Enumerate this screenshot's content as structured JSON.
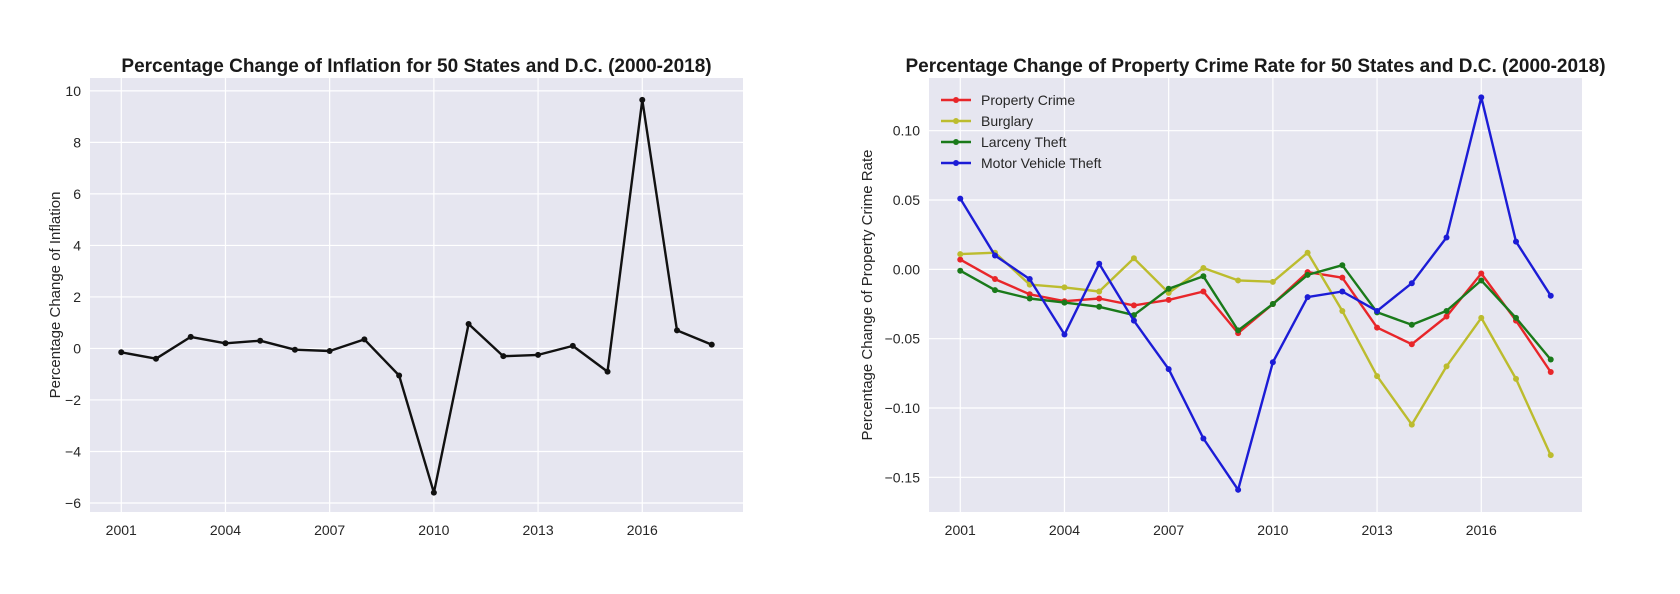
{
  "chart_data": [
    {
      "type": "line",
      "title": "Percentage Change of Inflation for 50 States and D.C. (2000-2018)",
      "xlabel": "",
      "ylabel": "Percentage Change of Inflation",
      "xlim": [
        2000.1,
        2018.9
      ],
      "ylim": [
        -6.35,
        10.5
      ],
      "x_ticks": [
        2001,
        2004,
        2007,
        2010,
        2013,
        2016
      ],
      "y_ticks": [
        -6,
        -4,
        -2,
        0,
        2,
        4,
        6,
        8,
        10
      ],
      "y_tick_labels": [
        "−6",
        "−4",
        "−2",
        "0",
        "2",
        "4",
        "6",
        "8",
        "10"
      ],
      "grid": true,
      "legend": "none",
      "x": [
        2001,
        2002,
        2003,
        2004,
        2005,
        2006,
        2007,
        2008,
        2009,
        2010,
        2011,
        2012,
        2013,
        2014,
        2015,
        2016,
        2017,
        2018
      ],
      "series": [
        {
          "color": "#111111",
          "values": [
            -0.15,
            -0.4,
            0.45,
            0.2,
            0.3,
            -0.05,
            -0.1,
            0.35,
            -1.05,
            -5.6,
            0.95,
            -0.3,
            -0.25,
            0.1,
            -0.9,
            9.65,
            0.7,
            0.15
          ]
        }
      ]
    },
    {
      "type": "line",
      "title": "Percentage Change of Property Crime Rate for 50 States and D.C. (2000-2018)",
      "xlabel": "",
      "ylabel": "Percentage Change of Property Crime Rate",
      "xlim": [
        2000.1,
        2018.9
      ],
      "ylim": [
        -0.175,
        0.138
      ],
      "x_ticks": [
        2001,
        2004,
        2007,
        2010,
        2013,
        2016
      ],
      "y_ticks": [
        -0.15,
        -0.1,
        -0.05,
        0.0,
        0.05,
        0.1
      ],
      "y_tick_labels": [
        "−0.15",
        "−0.10",
        "−0.05",
        "0.00",
        "0.05",
        "0.10"
      ],
      "grid": true,
      "legend": "top-left",
      "x": [
        2001,
        2002,
        2003,
        2004,
        2005,
        2006,
        2007,
        2008,
        2009,
        2010,
        2011,
        2012,
        2013,
        2014,
        2015,
        2016,
        2017,
        2018
      ],
      "series": [
        {
          "name": "Property Crime",
          "color": "#e8262a",
          "values": [
            0.007,
            -0.007,
            -0.018,
            -0.023,
            -0.021,
            -0.026,
            -0.022,
            -0.016,
            -0.046,
            -0.025,
            -0.002,
            -0.006,
            -0.042,
            -0.054,
            -0.034,
            -0.003,
            -0.037,
            -0.074
          ]
        },
        {
          "name": "Burglary",
          "color": "#bcbc2e",
          "values": [
            0.011,
            0.012,
            -0.011,
            -0.013,
            -0.016,
            0.008,
            -0.017,
            0.001,
            -0.008,
            -0.009,
            0.012,
            -0.03,
            -0.077,
            -0.112,
            -0.07,
            -0.035,
            -0.079,
            -0.134
          ]
        },
        {
          "name": "Larceny Theft",
          "color": "#1a7a1a",
          "values": [
            -0.001,
            -0.015,
            -0.021,
            -0.024,
            -0.027,
            -0.033,
            -0.014,
            -0.005,
            -0.044,
            -0.025,
            -0.004,
            0.003,
            -0.031,
            -0.04,
            -0.03,
            -0.008,
            -0.035,
            -0.065
          ]
        },
        {
          "name": "Motor Vehicle Theft",
          "color": "#1c1cd6",
          "values": [
            0.051,
            0.01,
            -0.007,
            -0.047,
            0.004,
            -0.037,
            -0.072,
            -0.122,
            -0.159,
            -0.067,
            -0.02,
            -0.016,
            -0.03,
            -0.01,
            0.023,
            0.124,
            0.02,
            -0.019
          ]
        }
      ]
    }
  ]
}
